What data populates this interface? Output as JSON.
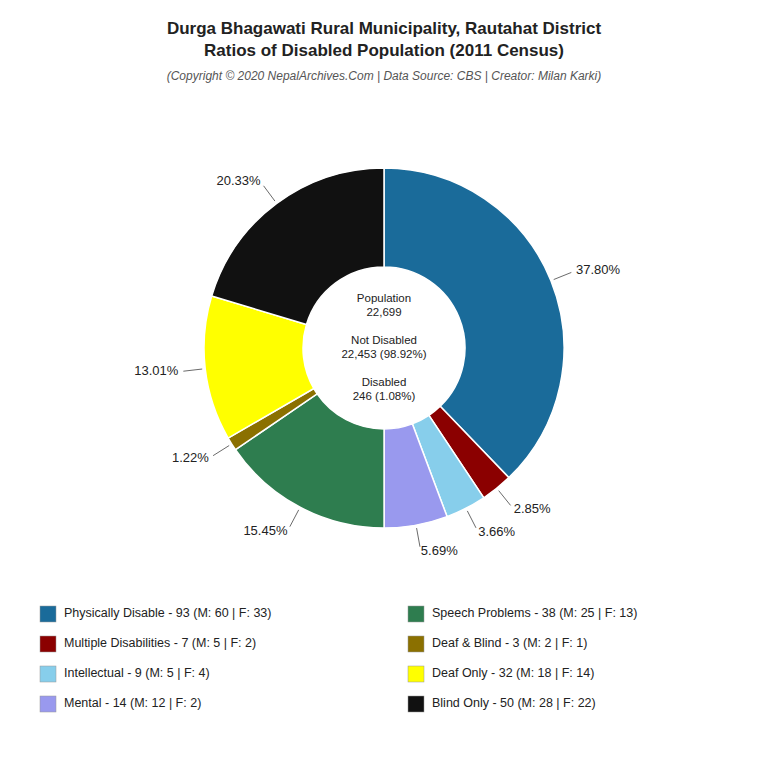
{
  "chart_data": {
    "type": "donut",
    "title": "Durga Bhagawati Rural Municipality, Rautahat District\nRatios of Disabled Population (2011 Census)",
    "subtitle": "(Copyright © 2020 NepalArchives.Com | Data Source: CBS | Creator: Milan Karki)",
    "annotations": [
      "Population\n22,699\n\nNot Disabled\n22,453 (98.92%)\n\nDisabled\n246 (1.08%)"
    ],
    "categories": [
      "Physically Disable - 93 (M: 60 | F: 33)",
      "Multiple Disabilities - 7 (M: 5 | F: 2)",
      "Intellectual - 9 (M: 5 | F: 4)",
      "Mental - 14 (M: 12 | F: 2)",
      "Speech Problems - 38 (M: 25 | F: 13)",
      "Deaf & Blind - 3 (M: 2 | F: 1)",
      "Deaf Only - 32 (M: 18 | F: 14)",
      "Blind Only - 50 (M: 28 | F: 22)"
    ],
    "values": [
      37.8,
      2.85,
      3.66,
      5.69,
      15.45,
      1.22,
      13.01,
      20.33
    ],
    "value_labels": [
      "37.80%",
      "2.85%",
      "3.66%",
      "5.69%",
      "15.45%",
      "1.22%",
      "13.01%",
      "20.33%"
    ],
    "colors": [
      "#1a6b9a",
      "#8b0000",
      "#87ceeb",
      "#9999ee",
      "#2e7d4f",
      "#8b7000",
      "#ffff00",
      "#111111"
    ],
    "data_labels": true,
    "legend": "bottom"
  }
}
